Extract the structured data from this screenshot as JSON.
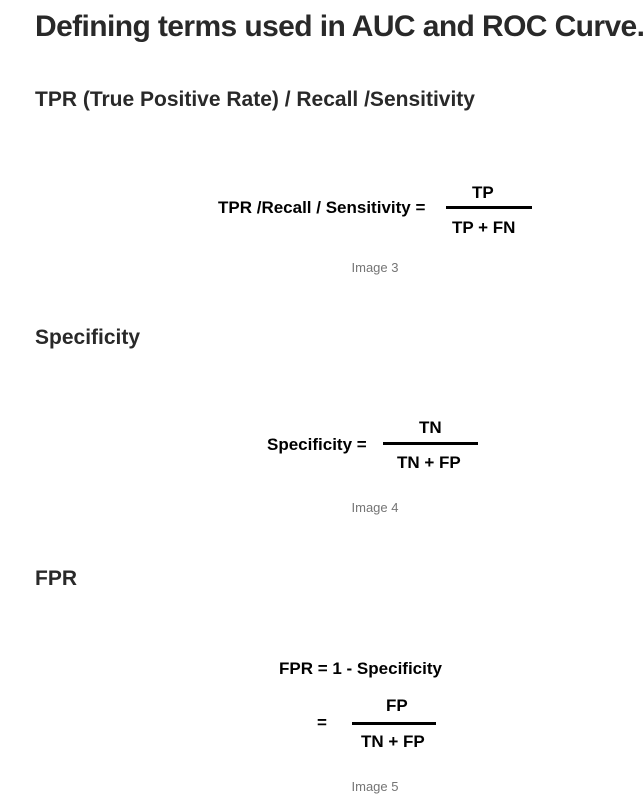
{
  "title": "Defining terms used in AUC and ROC Curve.",
  "sections": [
    {
      "heading": "TPR (True Positive Rate) / Recall /Sensitivity",
      "formula": {
        "lhs": "TPR /Recall / Sensitivity =",
        "numerator": "TP",
        "denominator": "TP + FN"
      },
      "caption": "Image 3"
    },
    {
      "heading": "Specificity",
      "formula": {
        "lhs": "Specificity =",
        "numerator": "TN",
        "denominator": "TN + FP"
      },
      "caption": "Image 4"
    },
    {
      "heading": "FPR",
      "formula": {
        "line1": "FPR = 1 - Specificity",
        "lhs": "=",
        "numerator": "FP",
        "denominator": "TN + FP"
      },
      "caption": "Image 5"
    }
  ]
}
